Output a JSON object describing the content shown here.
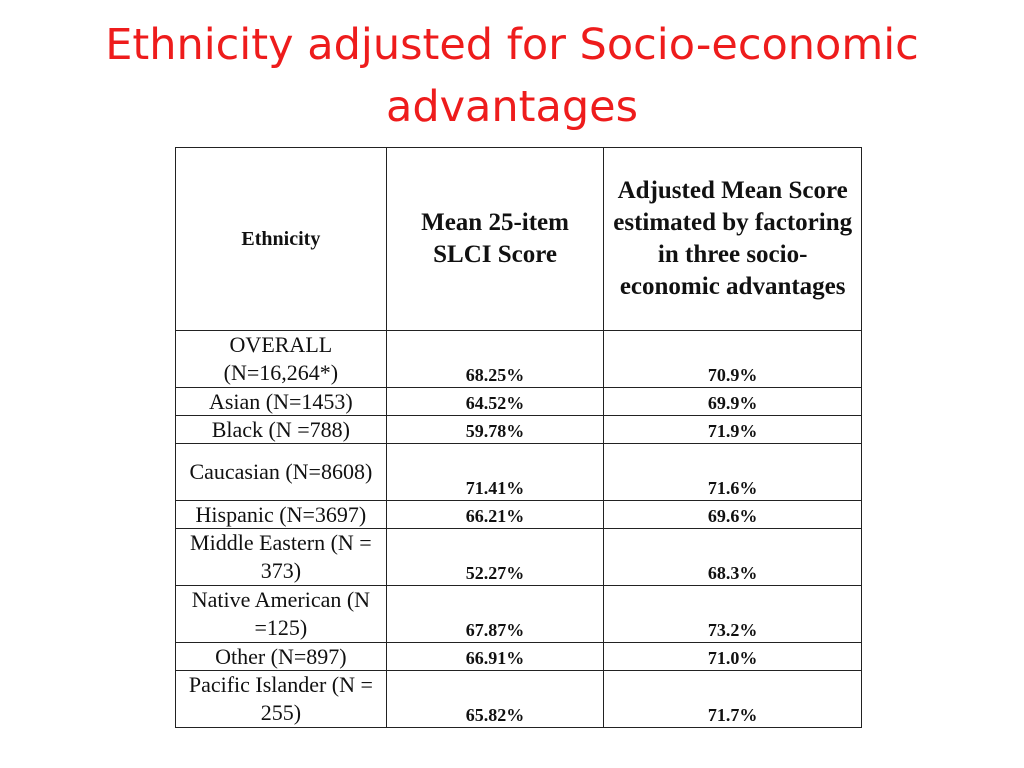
{
  "slide": {
    "title_line1": "Ethnicity adjusted for Socio-economic",
    "title_line2": "advantages",
    "title_color": "#ee1c1c"
  },
  "table": {
    "headers": {
      "ethnicity": "Ethnicity",
      "mean": "Mean 25-item SLCI Score",
      "adjusted": "Adjusted Mean Score estimated by factoring in three socio-economic advantages"
    },
    "rows": [
      {
        "ethnicity": "OVERALL (N=16,264*)",
        "mean": "68.25%",
        "adjusted": "70.9%"
      },
      {
        "ethnicity": "Asian (N=1453)",
        "mean": "64.52%",
        "adjusted": "69.9%"
      },
      {
        "ethnicity": "Black (N =788)",
        "mean": "59.78%",
        "adjusted": "71.9%"
      },
      {
        "ethnicity": "Caucasian (N=8608)",
        "mean": "71.41%",
        "adjusted": "71.6%"
      },
      {
        "ethnicity": "Hispanic (N=3697)",
        "mean": "66.21%",
        "adjusted": "69.6%"
      },
      {
        "ethnicity": "Middle Eastern (N = 373)",
        "mean": "52.27%",
        "adjusted": "68.3%"
      },
      {
        "ethnicity": "Native American (N =125)",
        "mean": "67.87%",
        "adjusted": "73.2%"
      },
      {
        "ethnicity": "Other (N=897)",
        "mean": "66.91%",
        "adjusted": "71.0%"
      },
      {
        "ethnicity": "Pacific Islander (N = 255)",
        "mean": "65.82%",
        "adjusted": "71.7%"
      }
    ]
  }
}
